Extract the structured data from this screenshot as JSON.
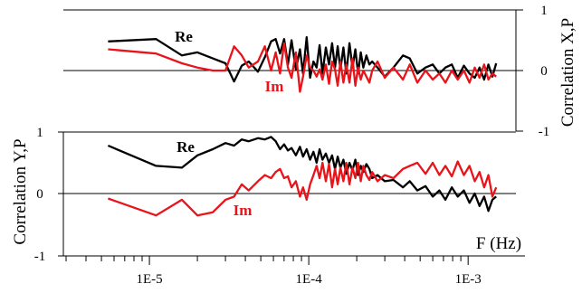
{
  "chart_data": [
    {
      "type": "line",
      "id": "top",
      "ylabel": "Correlation X,P",
      "ylabel_side": "right",
      "yticks": [
        "1",
        "0",
        "-1"
      ],
      "ylim": [
        -1,
        1
      ],
      "xlim_log10": [
        -5.54,
        -2.7
      ],
      "series": [
        {
          "name": "Re",
          "color": "#000000",
          "x": [
            5.5e-06,
            1.1e-05,
            1.6e-05,
            2e-05,
            2.5e-05,
            3e-05,
            3.4e-05,
            3.8e-05,
            4.2e-05,
            4.8e-05,
            5.3e-05,
            5.8e-05,
            6.2e-05,
            6.6e-05,
            7e-05,
            7.4e-05,
            7.8e-05,
            8.3e-05,
            8.8e-05,
            9.2e-05,
            9.7e-05,
            0.000102,
            0.000107,
            0.000112,
            0.000117,
            0.000122,
            0.000128,
            0.000134,
            0.00014,
            0.000146,
            0.000152,
            0.000158,
            0.000165,
            0.000172,
            0.00018,
            0.000188,
            0.000196,
            0.000204,
            0.000212,
            0.00022,
            0.00023,
            0.00024,
            0.00025,
            0.00027,
            0.0003,
            0.00034,
            0.00039,
            0.00043,
            0.00048,
            0.00054,
            0.0006,
            0.00066,
            0.00072,
            0.00079,
            0.00086,
            0.00094,
            0.00102,
            0.0011,
            0.00118,
            0.00126,
            0.00134,
            0.00142,
            0.0015
          ],
          "y": [
            0.48,
            0.52,
            0.25,
            0.3,
            0.2,
            0.12,
            -0.18,
            0.08,
            0.15,
            -0.02,
            0.22,
            0.48,
            0.52,
            0.28,
            0.52,
            0.1,
            0.5,
            0.02,
            0.35,
            -0.05,
            0.55,
            -0.12,
            0.15,
            0.05,
            0.42,
            -0.05,
            0.38,
            0.1,
            0.45,
            0.05,
            0.4,
            0.02,
            0.38,
            -0.05,
            0.45,
            0.05,
            0.35,
            -0.05,
            0.3,
            0.05,
            0.25,
            0.1,
            0.15,
            0.05,
            -0.1,
            0.05,
            0.25,
            0.2,
            -0.05,
            0.05,
            0.1,
            -0.05,
            0.05,
            0.1,
            -0.12,
            0.08,
            -0.05,
            -0.12,
            0.05,
            -0.15,
            0.1,
            -0.1,
            0.12
          ]
        },
        {
          "name": "Im",
          "color": "#e8141a",
          "x": [
            5.5e-06,
            1.1e-05,
            1.6e-05,
            2e-05,
            2.5e-05,
            3e-05,
            3.4e-05,
            3.8e-05,
            4.2e-05,
            4.8e-05,
            5.3e-05,
            5.8e-05,
            6.2e-05,
            6.6e-05,
            7e-05,
            7.4e-05,
            7.8e-05,
            8.3e-05,
            8.8e-05,
            9.2e-05,
            9.7e-05,
            0.000102,
            0.000107,
            0.000112,
            0.000117,
            0.000122,
            0.000128,
            0.000134,
            0.00014,
            0.000146,
            0.000152,
            0.000158,
            0.000165,
            0.000172,
            0.00018,
            0.000188,
            0.000196,
            0.000204,
            0.000212,
            0.00022,
            0.00023,
            0.00024,
            0.00025,
            0.00027,
            0.0003,
            0.00034,
            0.00039,
            0.00043,
            0.00048,
            0.00054,
            0.0006,
            0.00066,
            0.00072,
            0.00079,
            0.00086,
            0.00094,
            0.00102,
            0.0011,
            0.00118,
            0.00126,
            0.00134,
            0.00142,
            0.0015
          ],
          "y": [
            0.35,
            0.28,
            0.12,
            0.05,
            0.0,
            0.0,
            0.4,
            0.25,
            0.05,
            0.15,
            0.4,
            0.0,
            0.3,
            -0.05,
            0.45,
            0.05,
            -0.12,
            0.3,
            -0.35,
            -0.1,
            0.25,
            0.05,
            0.0,
            -0.1,
            0.02,
            -0.15,
            0.1,
            -0.22,
            0.15,
            0.02,
            -0.25,
            0.15,
            -0.2,
            0.1,
            -0.2,
            0.2,
            -0.25,
            0.05,
            -0.15,
            0.0,
            -0.1,
            -0.2,
            0.0,
            0.15,
            -0.12,
            0.05,
            -0.15,
            0.1,
            -0.2,
            0.0,
            -0.15,
            -0.05,
            -0.2,
            0.0,
            -0.15,
            0.0,
            -0.2,
            0.05,
            -0.12,
            0.1,
            -0.15,
            -0.05,
            -0.1
          ]
        }
      ]
    },
    {
      "type": "line",
      "id": "bottom",
      "ylabel": "Correlation Y,P",
      "ylabel_side": "left",
      "yticks": [
        "1",
        "0",
        "-1"
      ],
      "ylim": [
        -1,
        1
      ],
      "xlabel": "F (Hz)",
      "xscale": "log",
      "xticks": [
        {
          "value": 1e-05,
          "label": "1E-5"
        },
        {
          "value": 0.0001,
          "label": "1E-4"
        },
        {
          "value": 0.001,
          "label": "1E-3"
        }
      ],
      "xlim_log10": [
        -5.54,
        -2.7
      ],
      "series": [
        {
          "name": "Re",
          "color": "#000000",
          "x": [
            5.5e-06,
            1.1e-05,
            1.6e-05,
            2e-05,
            2.5e-05,
            3e-05,
            3.4e-05,
            3.8e-05,
            4.2e-05,
            4.8e-05,
            5.3e-05,
            5.8e-05,
            6.2e-05,
            6.6e-05,
            7e-05,
            7.4e-05,
            7.8e-05,
            8.3e-05,
            8.8e-05,
            9.2e-05,
            9.7e-05,
            0.000102,
            0.000107,
            0.000112,
            0.000117,
            0.000122,
            0.000128,
            0.000134,
            0.00014,
            0.000146,
            0.000152,
            0.000158,
            0.000165,
            0.000172,
            0.00018,
            0.000188,
            0.000196,
            0.000204,
            0.000212,
            0.00022,
            0.00023,
            0.00024,
            0.00025,
            0.00027,
            0.0003,
            0.00034,
            0.00039,
            0.00043,
            0.00048,
            0.00054,
            0.0006,
            0.00066,
            0.00072,
            0.00079,
            0.00086,
            0.00094,
            0.00102,
            0.0011,
            0.00118,
            0.00126,
            0.00134,
            0.00142,
            0.0015
          ],
          "y": [
            0.78,
            0.45,
            0.42,
            0.62,
            0.72,
            0.82,
            0.78,
            0.88,
            0.85,
            0.9,
            0.88,
            0.92,
            0.85,
            0.72,
            0.8,
            0.7,
            0.74,
            0.62,
            0.76,
            0.6,
            0.72,
            0.55,
            0.68,
            0.5,
            0.72,
            0.55,
            0.65,
            0.5,
            0.62,
            0.4,
            0.6,
            0.42,
            0.55,
            0.32,
            0.5,
            0.38,
            0.55,
            0.3,
            0.45,
            0.35,
            0.48,
            0.4,
            0.25,
            0.3,
            0.2,
            0.22,
            0.1,
            0.2,
            0.05,
            0.12,
            -0.05,
            0.05,
            -0.1,
            0.1,
            -0.05,
            0.05,
            -0.15,
            0.0,
            -0.2,
            -0.05,
            -0.28,
            -0.1,
            -0.05
          ]
        },
        {
          "name": "Im",
          "color": "#e8141a",
          "x": [
            5.5e-06,
            1.1e-05,
            1.6e-05,
            2e-05,
            2.5e-05,
            3e-05,
            3.4e-05,
            3.8e-05,
            4.2e-05,
            4.8e-05,
            5.3e-05,
            5.8e-05,
            6.2e-05,
            6.6e-05,
            7e-05,
            7.4e-05,
            7.8e-05,
            8.3e-05,
            8.8e-05,
            9.2e-05,
            9.7e-05,
            0.000102,
            0.000107,
            0.000112,
            0.000117,
            0.000122,
            0.000128,
            0.000134,
            0.00014,
            0.000146,
            0.000152,
            0.000158,
            0.000165,
            0.000172,
            0.00018,
            0.000188,
            0.000196,
            0.000204,
            0.000212,
            0.00022,
            0.00023,
            0.00024,
            0.00025,
            0.00027,
            0.0003,
            0.00034,
            0.00039,
            0.00043,
            0.00048,
            0.00054,
            0.0006,
            0.00066,
            0.00072,
            0.00079,
            0.00086,
            0.00094,
            0.00102,
            0.0011,
            0.00118,
            0.00126,
            0.00134,
            0.00142,
            0.0015
          ],
          "y": [
            -0.08,
            -0.35,
            -0.1,
            -0.35,
            -0.3,
            -0.1,
            -0.05,
            0.15,
            0.05,
            0.2,
            0.3,
            0.25,
            0.35,
            0.4,
            0.25,
            0.28,
            0.1,
            0.2,
            -0.05,
            0.1,
            -0.1,
            0.15,
            0.3,
            0.45,
            0.25,
            0.5,
            0.2,
            0.48,
            0.1,
            0.4,
            0.15,
            0.42,
            0.2,
            0.5,
            0.15,
            0.42,
            0.25,
            0.5,
            0.2,
            0.45,
            0.3,
            0.22,
            0.35,
            0.2,
            0.3,
            0.25,
            0.4,
            0.45,
            0.5,
            0.32,
            0.5,
            0.3,
            0.45,
            0.28,
            0.52,
            0.3,
            0.45,
            0.2,
            0.35,
            0.1,
            0.3,
            -0.05,
            0.1
          ]
        }
      ]
    }
  ]
}
